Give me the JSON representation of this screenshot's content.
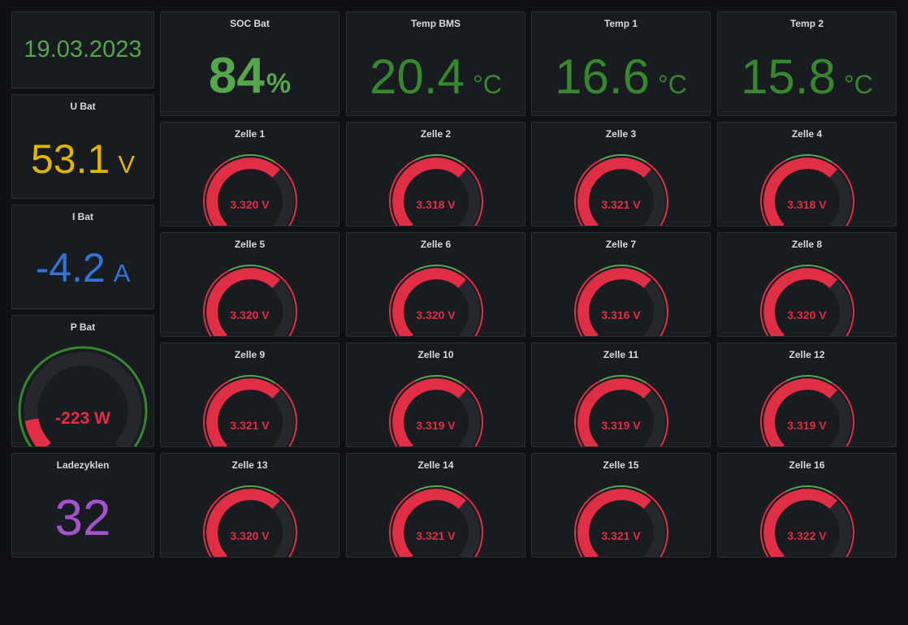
{
  "colors": {
    "green": "#56a64b",
    "dark_green": "#37872d",
    "yellow": "#e0b400",
    "blue": "#3274d9",
    "purple": "#a352cc",
    "red": "#e02f44",
    "track": "#25272c"
  },
  "date_panel": {
    "value": "19.03.2023"
  },
  "u_bat": {
    "title": "U Bat",
    "value": "53.1",
    "unit": "V"
  },
  "i_bat": {
    "title": "I Bat",
    "value": "-4.2",
    "unit": "A"
  },
  "p_bat": {
    "title": "P Bat",
    "value_text": "-223 W",
    "level": 0.13
  },
  "ladezyklen": {
    "title": "Ladezyklen",
    "value": "32"
  },
  "soc_bat": {
    "title": "SOC Bat",
    "value": "84",
    "unit": "%"
  },
  "temp_bms": {
    "title": "Temp BMS",
    "value": "20.4",
    "unit": "°C"
  },
  "temp_1": {
    "title": "Temp 1",
    "value": "16.6",
    "unit": "°C"
  },
  "temp_2": {
    "title": "Temp 2",
    "value": "15.8",
    "unit": "°C"
  },
  "cells": [
    {
      "title": "Zelle 1",
      "value_text": "3.320 V",
      "level": 0.66
    },
    {
      "title": "Zelle 2",
      "value_text": "3.318 V",
      "level": 0.66
    },
    {
      "title": "Zelle 3",
      "value_text": "3.321 V",
      "level": 0.66
    },
    {
      "title": "Zelle 4",
      "value_text": "3.318 V",
      "level": 0.66
    },
    {
      "title": "Zelle 5",
      "value_text": "3.320 V",
      "level": 0.66
    },
    {
      "title": "Zelle 6",
      "value_text": "3.320 V",
      "level": 0.66
    },
    {
      "title": "Zelle 7",
      "value_text": "3.316 V",
      "level": 0.66
    },
    {
      "title": "Zelle 8",
      "value_text": "3.320 V",
      "level": 0.66
    },
    {
      "title": "Zelle 9",
      "value_text": "3.321 V",
      "level": 0.66
    },
    {
      "title": "Zelle 10",
      "value_text": "3.319 V",
      "level": 0.66
    },
    {
      "title": "Zelle 11",
      "value_text": "3.319 V",
      "level": 0.66
    },
    {
      "title": "Zelle 12",
      "value_text": "3.319 V",
      "level": 0.66
    },
    {
      "title": "Zelle 13",
      "value_text": "3.320 V",
      "level": 0.66
    },
    {
      "title": "Zelle 14",
      "value_text": "3.321 V",
      "level": 0.66
    },
    {
      "title": "Zelle 15",
      "value_text": "3.321 V",
      "level": 0.66
    },
    {
      "title": "Zelle 16",
      "value_text": "3.322 V",
      "level": 0.66
    }
  ]
}
